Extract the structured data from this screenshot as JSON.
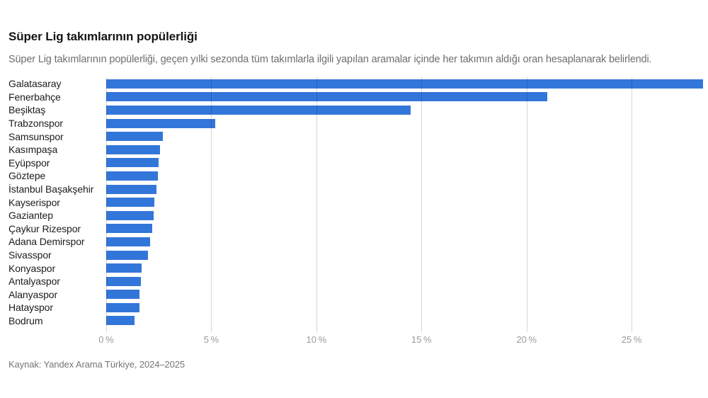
{
  "page": {
    "title": "Süper Lig takımlarının popülerliği",
    "subtitle": "Süper Lig takımlarının popülerliği, geçen yılki sezonda tüm takımlarla ilgili yapılan aramalar içinde her takımın aldığı oran hesaplanarak belirlendi.",
    "source": "Kaynak: Yandex Arama Türkiye, 2024–2025"
  },
  "colors": {
    "bar": "#3376d9",
    "grid": "rgba(0,0,0,0.16)",
    "grid_hex_on_white": "#d8d8d8",
    "title_text": "#141414",
    "subtitle_text": "#6e6e6e",
    "category_text": "#1c1c1c",
    "tick_text": "#9a9a9a",
    "source_text": "#757575",
    "background": "#ffffff"
  },
  "chart_data": {
    "type": "bar",
    "orientation": "horizontal",
    "title": "Süper Lig takımlarının popülerliği",
    "xlabel": "",
    "ylabel": "",
    "unit": "%",
    "xlim": [
      0,
      28.4
    ],
    "xticks": [
      0,
      5,
      10,
      15,
      20,
      25
    ],
    "xtick_labels": [
      "0 %",
      "5 %",
      "10 %",
      "15 %",
      "20 %",
      "25 %"
    ],
    "grid": true,
    "gridlines_over_bars": true,
    "legend": false,
    "categories": [
      "Galatasaray",
      "Fenerbahçe",
      "Beşiktaş",
      "Trabzonspor",
      "Samsunspor",
      "Kasımpaşa",
      "Eyüpspor",
      "Göztepe",
      "İstanbul Başakşehir",
      "Kayserispor",
      "Gaziantep",
      "Çaykur Rizespor",
      "Adana Demirspor",
      "Sivasspor",
      "Konyaspor",
      "Antalyaspor",
      "Alanyaspor",
      "Hatayspor",
      "Bodrum"
    ],
    "values": [
      28.4,
      21.0,
      14.5,
      5.2,
      2.7,
      2.55,
      2.5,
      2.45,
      2.4,
      2.3,
      2.25,
      2.2,
      2.1,
      2.0,
      1.7,
      1.65,
      1.6,
      1.6,
      1.35
    ]
  }
}
